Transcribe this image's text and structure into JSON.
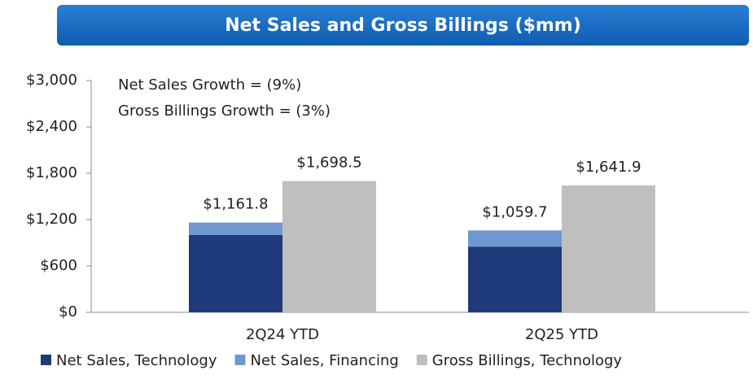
{
  "chart_data": {
    "type": "bar",
    "title": "Net Sales and Gross Billings ($mm)",
    "annotations": [
      "Net Sales Growth = (9%)",
      "Gross Billings Growth = (3%)"
    ],
    "categories": [
      "2Q24 YTD",
      "2Q25 YTD"
    ],
    "series": [
      {
        "name": "Net Sales, Technology",
        "color": "#1f3a7a",
        "stack": "Net Sales",
        "values": [
          1000,
          850
        ]
      },
      {
        "name": "Net Sales, Financing",
        "color": "#6f98d0",
        "stack": "Net Sales",
        "values": [
          161.8,
          209.7
        ]
      },
      {
        "name": "Gross Billings, Technology",
        "color": "#bfbfbf",
        "stack": "Gross Billings",
        "values": [
          1698.5,
          1641.9
        ],
        "value_labels": [
          "$1,698.5",
          "$1,641.9"
        ]
      }
    ],
    "stack_totals": {
      "stack": "Net Sales",
      "values": [
        1161.8,
        1059.7
      ],
      "value_labels": [
        "$1,161.8",
        "$1,059.7"
      ]
    },
    "ylim": [
      0,
      3000
    ],
    "yticks": [
      {
        "value": 0,
        "label": "$0"
      },
      {
        "value": 600,
        "label": "$600"
      },
      {
        "value": 1200,
        "label": "$1,200"
      },
      {
        "value": 1800,
        "label": "$1,800"
      },
      {
        "value": 2400,
        "label": "$2,400"
      },
      {
        "value": 3000,
        "label": "$3,000"
      }
    ],
    "grid": false,
    "legend": "bottom"
  }
}
